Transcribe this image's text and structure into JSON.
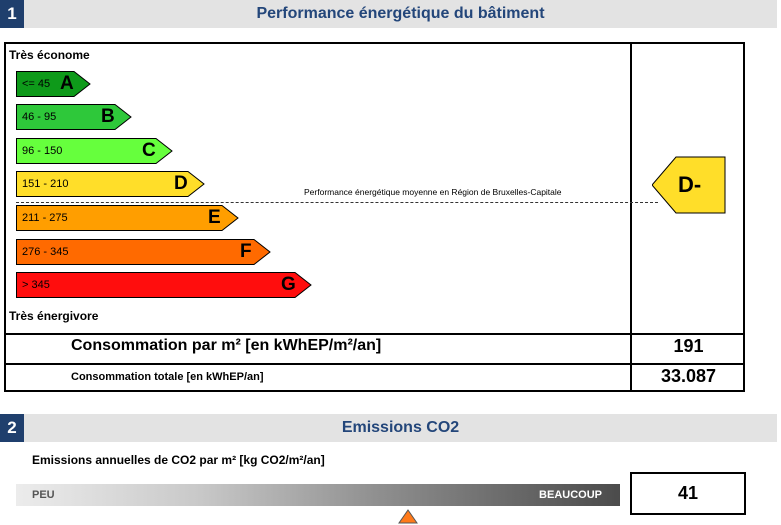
{
  "section1": {
    "number": "1",
    "title": "Performance énergétique du bâtiment",
    "scale_top": "Très économe",
    "scale_bottom": "Très énergivore",
    "grades": [
      {
        "range": "<= 45",
        "letter": "A",
        "color": "#0e9a1a"
      },
      {
        "range": "46 - 95",
        "letter": "B",
        "color": "#2ec83a"
      },
      {
        "range": "96 - 150",
        "letter": "C",
        "color": "#66ff3d"
      },
      {
        "range": "151 - 210",
        "letter": "D",
        "color": "#ffde29"
      },
      {
        "range": "211 - 275",
        "letter": "E",
        "color": "#ff9e00"
      },
      {
        "range": "276 - 345",
        "letter": "F",
        "color": "#ff6a00"
      },
      {
        "range": "> 345",
        "letter": "G",
        "color": "#ff0d0d"
      }
    ],
    "average_label": "Performance énergétique moyenne en Région de Bruxelles-Capitale",
    "indicator": {
      "label": "D-",
      "color": "#ffde29"
    },
    "consumption_per_m2": {
      "label": "Consommation par m² [en kWhEP/m²/an]",
      "value": "191"
    },
    "consumption_total": {
      "label": "Consommation totale [en kWhEP/an]",
      "value": "33.087"
    }
  },
  "section2": {
    "number": "2",
    "title": "Emissions CO2",
    "label": "Emissions annuelles de CO2 par m² [kg CO2/m²/an]",
    "low": "PEU",
    "high": "BEAUCOUP",
    "value": "41",
    "marker_color": "#ff7a1a"
  }
}
